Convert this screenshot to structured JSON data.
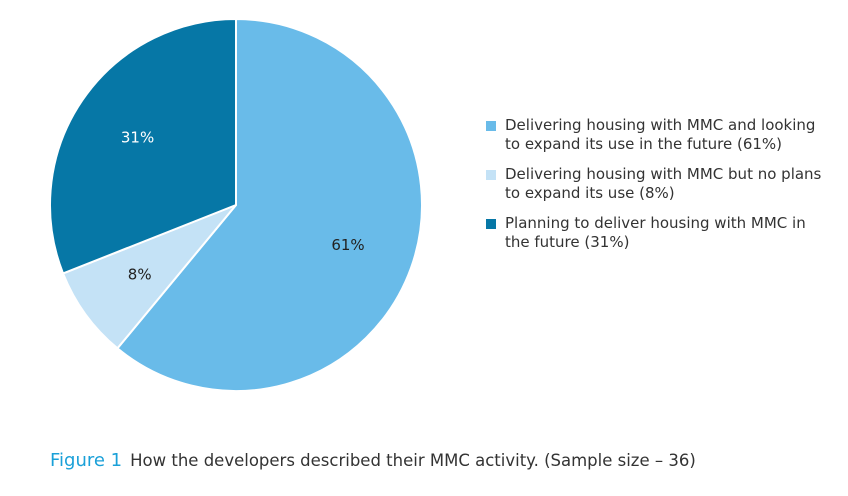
{
  "chart_data": {
    "type": "pie",
    "figure_label": "Figure 1",
    "title": "How the developers described their MMC activity. (Sample size – 36)",
    "categories": [
      "Delivering housing with MMC and looking to expand its use in the future (61%)",
      "Delivering housing with MMC but no plans to expand its use (8%)",
      "Planning to deliver housing with MMC in the future (31%)"
    ],
    "values": [
      61,
      8,
      31
    ],
    "value_labels": [
      "61%",
      "8%",
      "31%"
    ],
    "colors": [
      "#69bbe9",
      "#c4e2f6",
      "#0677a6"
    ]
  }
}
